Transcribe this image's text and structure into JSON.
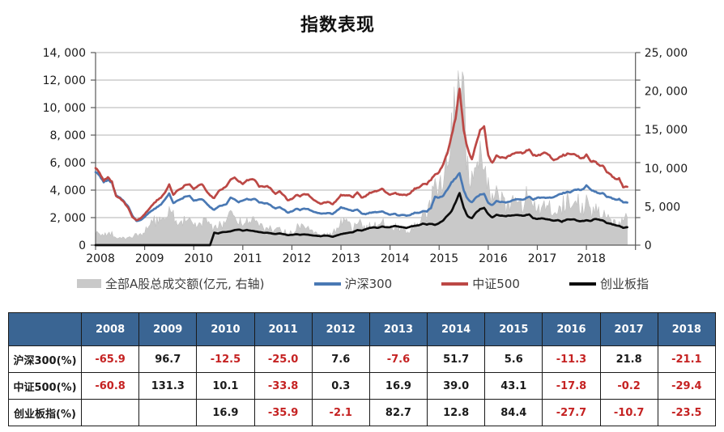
{
  "title": "指数表现",
  "chart_data": {
    "type": "line",
    "title": "指数表现",
    "x_unit": "month",
    "x_start": "2008-01",
    "x_end": "2018-11",
    "x_tick_labels": [
      "2008",
      "2009",
      "2010",
      "2011",
      "2012",
      "2013",
      "2014",
      "2015",
      "2016",
      "2017",
      "2018"
    ],
    "grid": true,
    "legend_position": "bottom",
    "left_axis": {
      "min": 0,
      "max": 14000,
      "step": 2000,
      "tick_labels": [
        "0",
        "2, 000",
        "4, 000",
        "6, 000",
        "8, 000",
        "10, 000",
        "12, 000",
        "14, 000"
      ]
    },
    "right_axis": {
      "min": 0,
      "max": 25000,
      "step": 5000,
      "tick_labels": [
        "0",
        "5, 000",
        "10, 000",
        "15, 000",
        "20, 000",
        "25, 000"
      ]
    },
    "series": [
      {
        "id": "turnover",
        "name": "全部A股总成交额(亿元, 右轴)",
        "type": "area",
        "axis": "right",
        "color": "#c9c9c9",
        "values": [
          1800,
          1500,
          1400,
          1600,
          1500,
          1200,
          1000,
          900,
          1000,
          1100,
          1300,
          1500,
          1800,
          2600,
          3200,
          3000,
          3200,
          3800,
          4500,
          4200,
          3000,
          2800,
          3500,
          3600,
          3200,
          2600,
          2800,
          3000,
          2400,
          2000,
          2600,
          2800,
          2600,
          4200,
          4500,
          3200,
          2600,
          3000,
          3200,
          3000,
          2400,
          2200,
          2400,
          2000,
          1800,
          2000,
          1800,
          1400,
          1600,
          2200,
          2400,
          2200,
          2000,
          1600,
          1400,
          1200,
          1400,
          1600,
          1400,
          2400,
          3200,
          3000,
          2600,
          2200,
          3000,
          2600,
          2200,
          2600,
          2800,
          2600,
          3000,
          2400,
          2200,
          2400,
          2200,
          2000,
          1800,
          2000,
          2600,
          3000,
          3600,
          3600,
          5400,
          9000,
          7500,
          8500,
          11500,
          15500,
          17500,
          22000,
          18000,
          10500,
          8000,
          9000,
          11000,
          10000,
          7500,
          5500,
          7000,
          6500,
          5000,
          5500,
          5500,
          6000,
          5000,
          5500,
          7500,
          5500,
          4500,
          4500,
          5500,
          5000,
          4500,
          4500,
          5000,
          6000,
          5500,
          5000,
          6000,
          4500,
          5500,
          4500,
          4500,
          4000,
          4000,
          3500,
          3000,
          2800,
          2800,
          3000,
          3800
        ]
      },
      {
        "id": "csi300",
        "name": "沪深300",
        "type": "line",
        "axis": "left",
        "color": "#4a79b4",
        "values": [
          5350,
          5050,
          4600,
          4750,
          4550,
          3650,
          3450,
          3150,
          2800,
          2150,
          1750,
          1820,
          2050,
          2350,
          2550,
          2750,
          2950,
          3350,
          3750,
          3050,
          3250,
          3350,
          3550,
          3580,
          3250,
          3300,
          3350,
          3050,
          2750,
          2550,
          2800,
          2900,
          2950,
          3450,
          3350,
          3130,
          3250,
          3350,
          3300,
          3350,
          3100,
          3050,
          3050,
          2850,
          2650,
          2750,
          2600,
          2350,
          2450,
          2650,
          2550,
          2650,
          2600,
          2450,
          2350,
          2300,
          2300,
          2350,
          2250,
          2520,
          2750,
          2650,
          2550,
          2500,
          2600,
          2300,
          2250,
          2350,
          2400,
          2400,
          2450,
          2330,
          2200,
          2300,
          2150,
          2200,
          2150,
          2200,
          2350,
          2350,
          2450,
          2450,
          2700,
          3530,
          3450,
          3600,
          4050,
          4550,
          4850,
          5250,
          3950,
          3350,
          3100,
          3450,
          3650,
          3730,
          3050,
          2900,
          3200,
          3150,
          3100,
          3150,
          3250,
          3350,
          3300,
          3350,
          3550,
          3310,
          3450,
          3450,
          3450,
          3450,
          3500,
          3650,
          3750,
          3850,
          3850,
          4000,
          4050,
          4030,
          4320,
          4050,
          3900,
          3750,
          3800,
          3500,
          3450,
          3300,
          3350,
          3100,
          3100
        ]
      },
      {
        "id": "csi500",
        "name": "中证500",
        "type": "line",
        "axis": "left",
        "color": "#bc4845",
        "values": [
          5650,
          5250,
          4700,
          4950,
          4600,
          3600,
          3400,
          3100,
          2700,
          2050,
          1800,
          1950,
          2250,
          2600,
          2950,
          3250,
          3450,
          3850,
          4400,
          3650,
          4000,
          4100,
          4400,
          4420,
          4100,
          4300,
          4450,
          3950,
          3600,
          3400,
          3900,
          4100,
          4250,
          4750,
          4950,
          4650,
          4450,
          4700,
          4800,
          4700,
          4250,
          4250,
          4300,
          4050,
          3700,
          3900,
          3650,
          3250,
          3350,
          3650,
          3550,
          3700,
          3650,
          3350,
          3150,
          3000,
          3100,
          3150,
          2950,
          3300,
          3650,
          3600,
          3600,
          3500,
          3850,
          3450,
          3550,
          3800,
          3900,
          3950,
          4100,
          3850,
          3650,
          3800,
          3700,
          3650,
          3650,
          3800,
          4100,
          4200,
          4400,
          4450,
          4750,
          5150,
          5300,
          5900,
          6700,
          7900,
          9200,
          11400,
          8300,
          7000,
          6200,
          7300,
          8300,
          8650,
          6500,
          5950,
          6500,
          6400,
          6300,
          6500,
          6600,
          6750,
          6700,
          6750,
          7000,
          6550,
          6500,
          6600,
          6750,
          6500,
          6200,
          6300,
          6500,
          6600,
          6650,
          6600,
          6450,
          6300,
          6550,
          6100,
          6100,
          5800,
          5800,
          5300,
          5100,
          4800,
          4850,
          4200,
          4250
        ]
      },
      {
        "id": "chinext",
        "name": "创业板指",
        "type": "line",
        "axis": "left",
        "color": "#0d0d0d",
        "values": [
          0,
          0,
          0,
          0,
          0,
          0,
          0,
          0,
          0,
          0,
          0,
          0,
          0,
          0,
          0,
          0,
          0,
          0,
          0,
          0,
          0,
          0,
          0,
          0,
          0,
          0,
          0,
          0,
          0,
          900,
          850,
          950,
          950,
          1000,
          1100,
          1137,
          1050,
          1100,
          1050,
          1000,
          950,
          900,
          900,
          850,
          800,
          850,
          800,
          720,
          750,
          800,
          750,
          780,
          750,
          700,
          680,
          650,
          700,
          680,
          600,
          713,
          800,
          850,
          900,
          950,
          1100,
          1050,
          1150,
          1250,
          1300,
          1250,
          1350,
          1304,
          1300,
          1400,
          1350,
          1300,
          1250,
          1350,
          1400,
          1450,
          1550,
          1500,
          1550,
          1471,
          1600,
          1800,
          2150,
          2450,
          3100,
          3800,
          2700,
          2100,
          1950,
          2350,
          2600,
          2714,
          2250,
          2000,
          2200,
          2150,
          2100,
          2150,
          2150,
          2200,
          2150,
          2150,
          2250,
          1962,
          1900,
          1950,
          1900,
          1850,
          1780,
          1820,
          1700,
          1850,
          1870,
          1870,
          1750,
          1752,
          1800,
          1750,
          1900,
          1850,
          1800,
          1600,
          1550,
          1450,
          1400,
          1250,
          1300
        ]
      }
    ]
  },
  "table": {
    "corner_label": "",
    "years": [
      "2008",
      "2009",
      "2010",
      "2011",
      "2012",
      "2013",
      "2014",
      "2015",
      "2016",
      "2017",
      "2018"
    ],
    "rows": [
      {
        "label": "沪深300(%)",
        "values": [
          "-65.9",
          "96.7",
          "-12.5",
          "-25.0",
          "7.6",
          "-7.6",
          "51.7",
          "5.6",
          "-11.3",
          "21.8",
          "-21.1"
        ]
      },
      {
        "label": "中证500(%)",
        "values": [
          "-60.8",
          "131.3",
          "10.1",
          "-33.8",
          "0.3",
          "16.9",
          "39.0",
          "43.1",
          "-17.8",
          "-0.2",
          "-29.4"
        ]
      },
      {
        "label": "创业板指(%)",
        "values": [
          "",
          "",
          "16.9",
          "-35.9",
          "-2.1",
          "82.7",
          "12.8",
          "84.4",
          "-27.7",
          "-10.7",
          "-23.5"
        ]
      }
    ],
    "colors": {
      "header_bg": "#3a6593",
      "header_text": "#ffffff",
      "negative": "#c52222",
      "positive": "#1a1a1a",
      "border": "#1a1a1a"
    }
  }
}
